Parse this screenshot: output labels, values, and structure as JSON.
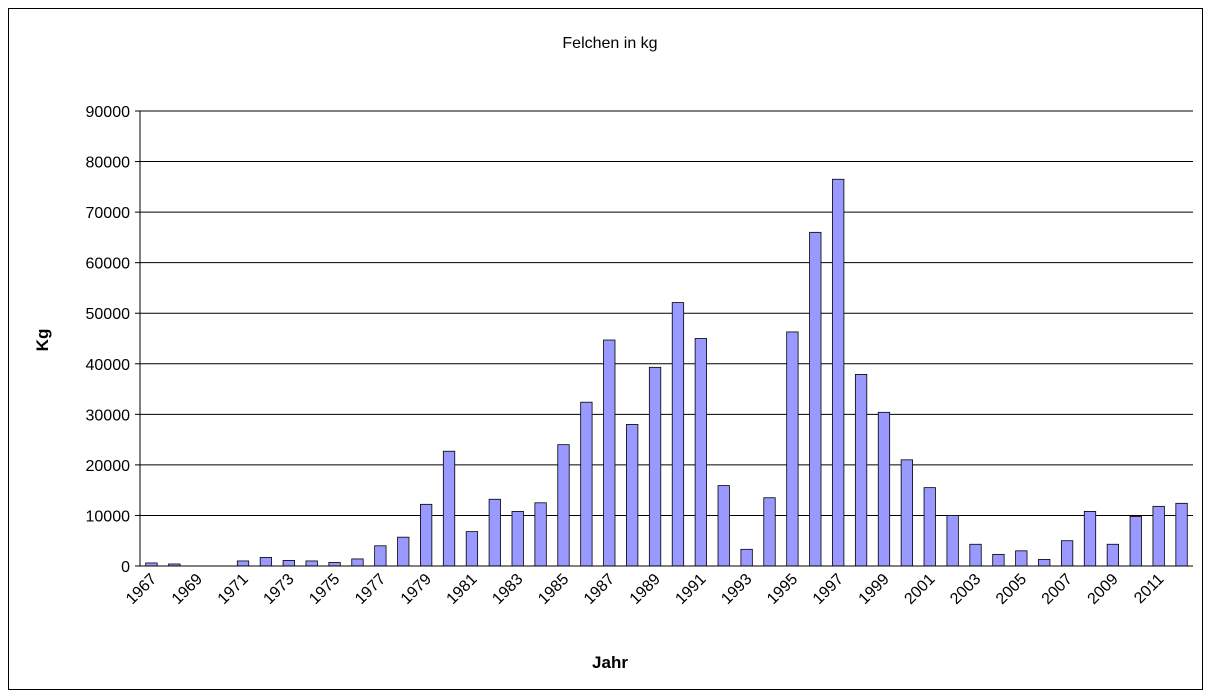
{
  "chart_data": {
    "type": "bar",
    "title": "Felchen in kg",
    "x_label": "Jahr",
    "y_label": "Kg",
    "categories": [
      "1967",
      null,
      "1969",
      null,
      "1971",
      null,
      "1973",
      null,
      "1975",
      null,
      "1977",
      null,
      "1979",
      null,
      "1981",
      null,
      "1983",
      null,
      "1985",
      null,
      "1987",
      null,
      "1989",
      null,
      "1991",
      null,
      "1993",
      null,
      "1995",
      null,
      "1997",
      null,
      "1999",
      null,
      "2001",
      null,
      "2003",
      null,
      "2005",
      null,
      "2007",
      null,
      "2009",
      null,
      "2011",
      null
    ],
    "values": [
      600,
      400,
      0,
      0,
      1000,
      1700,
      1100,
      1000,
      700,
      1400,
      4000,
      5700,
      12200,
      22700,
      6800,
      13200,
      10800,
      12500,
      24000,
      32400,
      44700,
      28000,
      39300,
      52100,
      45000,
      15900,
      3300,
      13500,
      46300,
      66000,
      76500,
      37900,
      30400,
      21000,
      15500,
      10000,
      4300,
      2300,
      3000,
      1300,
      5000,
      10800,
      4300,
      9800,
      11800,
      12400
    ],
    "color": "#9999ff",
    "ylim": [
      0,
      90000
    ],
    "yticks": [
      0,
      10000,
      20000,
      30000,
      40000,
      50000,
      60000,
      70000,
      80000,
      90000
    ],
    "grid": true
  }
}
